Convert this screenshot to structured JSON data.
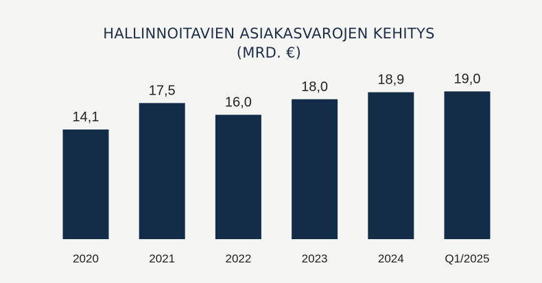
{
  "chart_data": {
    "type": "bar",
    "title": "HALLINNOITAVIEN ASIAKASVAROJEN KEHITYS",
    "subtitle": "(MRD. €)",
    "categories": [
      "2020",
      "2021",
      "2022",
      "2023",
      "2024",
      "Q1/2025"
    ],
    "values": [
      14.1,
      17.5,
      16.0,
      18.0,
      18.9,
      19.0
    ],
    "value_labels": [
      "14,1",
      "17,5",
      "16,0",
      "18,0",
      "18,9",
      "19,0"
    ],
    "xlabel": "",
    "ylabel": "",
    "ylim": [
      0,
      20.8
    ],
    "grid": false,
    "legend": "none",
    "bar_color": "#132c47"
  }
}
